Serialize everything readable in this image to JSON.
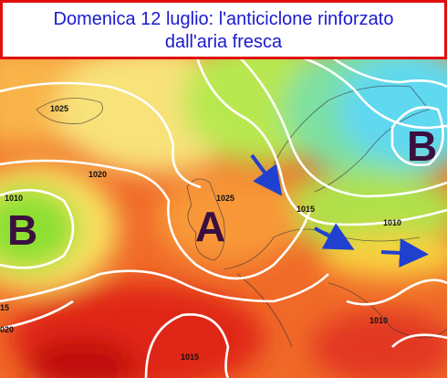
{
  "header": {
    "title": [
      "Domenica 12 luglio: l'anticiclone rinforzato",
      "dall'aria fresca"
    ]
  },
  "pressure_centers": [
    {
      "label": "B"
    },
    {
      "label": "A"
    },
    {
      "label": "B"
    }
  ],
  "isobar_labels": [
    "1025",
    "1020",
    "1010",
    "1025",
    "1015",
    "1010",
    "1010",
    "1015",
    "15",
    "020"
  ]
}
